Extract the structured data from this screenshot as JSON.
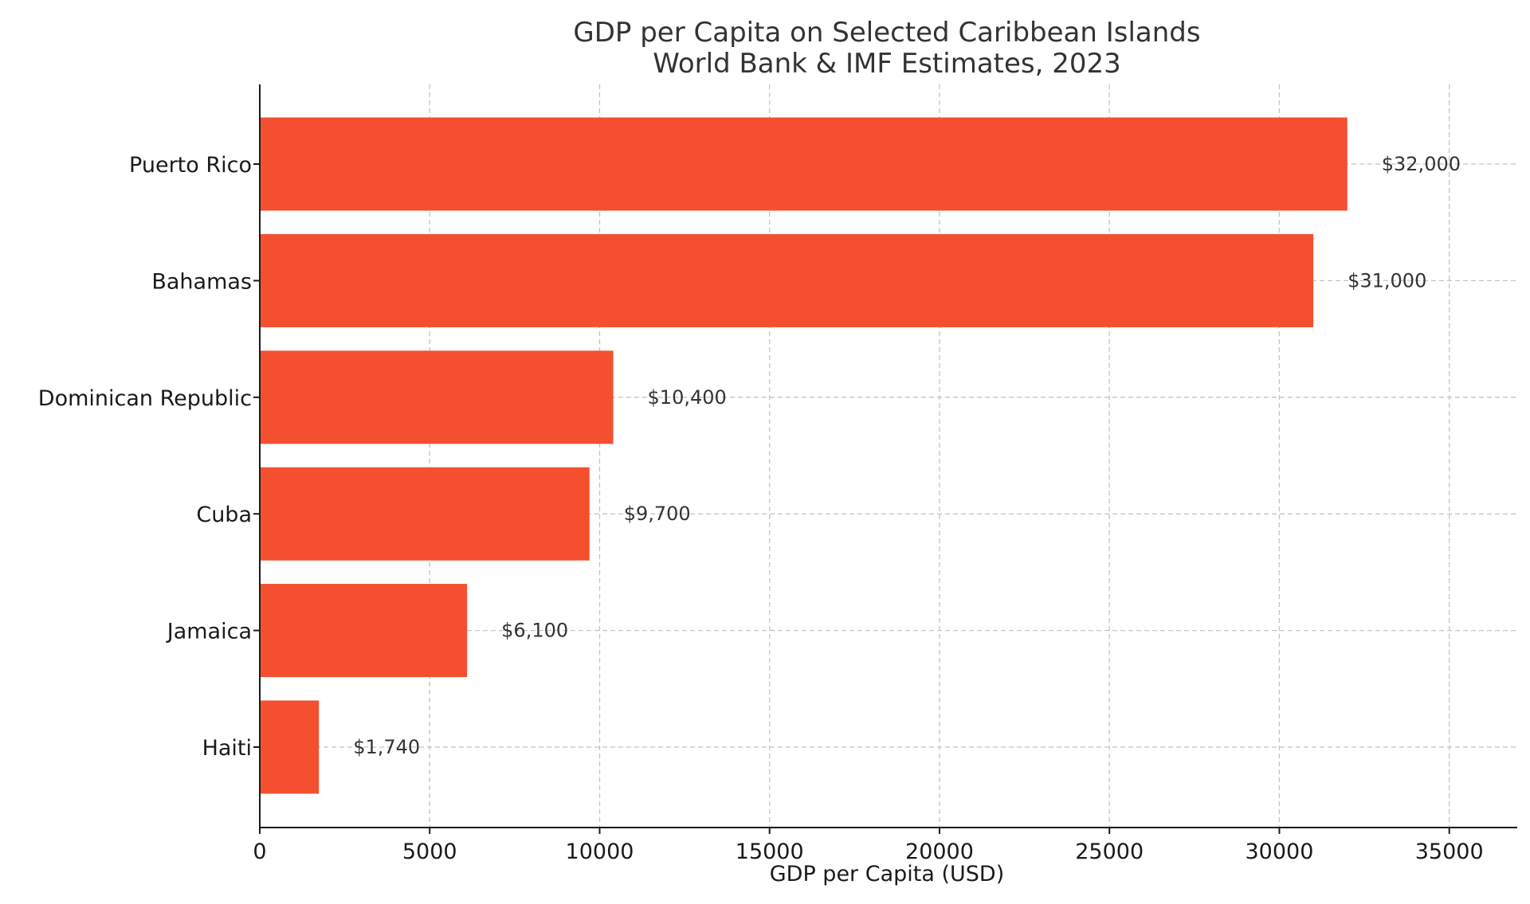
{
  "chart_data": {
    "type": "bar",
    "orientation": "horizontal",
    "title": "GDP per Capita on Selected Caribbean Islands",
    "subtitle": "World Bank & IMF Estimates, 2023",
    "xlabel": "GDP per Capita (USD)",
    "ylabel": "",
    "categories": [
      "Puerto Rico",
      "Bahamas",
      "Dominican Republic",
      "Cuba",
      "Jamaica",
      "Haiti"
    ],
    "values": [
      32000,
      31000,
      10400,
      9700,
      6100,
      1740
    ],
    "data_labels": [
      "$32,000",
      "$31,000",
      "$10,400",
      "$9,700",
      "$6,100",
      "$1,740"
    ],
    "xlim": [
      0,
      37000
    ],
    "x_ticks": [
      0,
      5000,
      10000,
      15000,
      20000,
      25000,
      30000,
      35000
    ],
    "x_tick_labels": [
      "0",
      "5000",
      "10000",
      "15000",
      "20000",
      "25000",
      "30000",
      "35000"
    ],
    "grid": true,
    "bar_color": "#f44f2f",
    "legend": "none"
  }
}
